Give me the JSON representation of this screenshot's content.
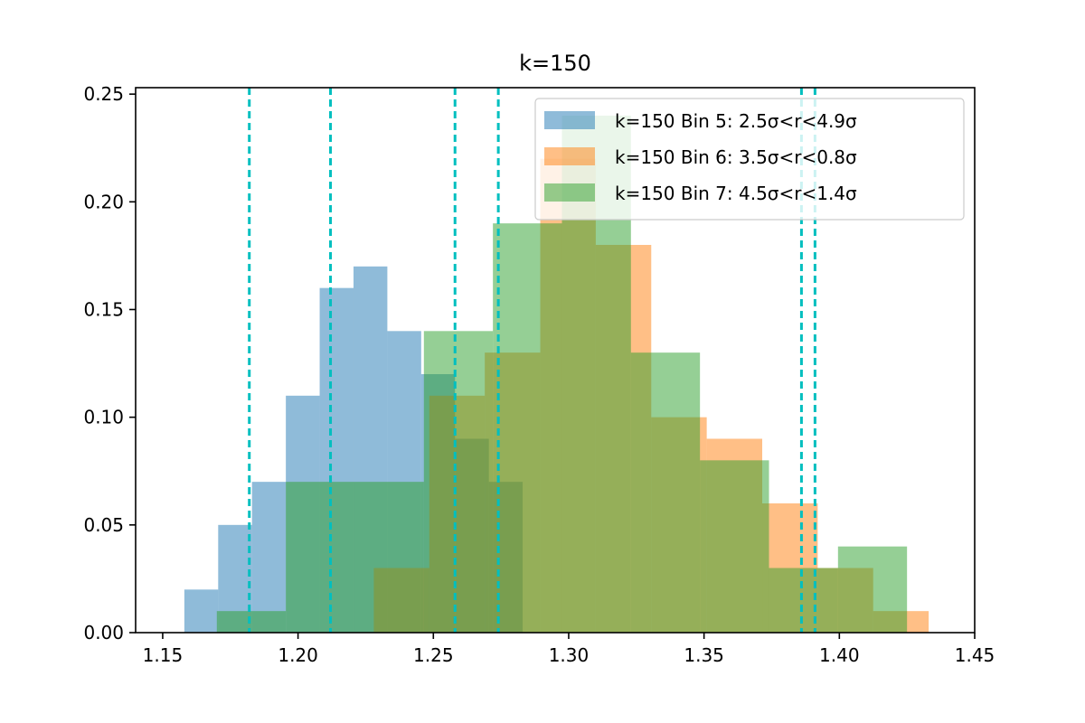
{
  "chart_data": {
    "type": "histogram",
    "title": "k=150",
    "xlabel": "",
    "ylabel": "",
    "xlim": [
      1.14,
      1.45
    ],
    "ylim": [
      0,
      0.253
    ],
    "xticks": [
      1.15,
      1.2,
      1.25,
      1.3,
      1.35,
      1.4,
      1.45
    ],
    "xtick_labels": [
      "1.15",
      "1.20",
      "1.25",
      "1.30",
      "1.35",
      "1.40",
      "1.45"
    ],
    "yticks": [
      0.0,
      0.05,
      0.1,
      0.15,
      0.2,
      0.25
    ],
    "ytick_labels": [
      "0.00",
      "0.05",
      "0.10",
      "0.15",
      "0.20",
      "0.25"
    ],
    "grid": false,
    "legend_position": "top-right",
    "series": [
      {
        "name": "k=150 Bin 5: 2.5σ<r<4.9σ",
        "color": "#1f77b4",
        "alpha": 0.5,
        "bins": [
          {
            "x0": 1.158,
            "x1": 1.1705,
            "value": 0.02
          },
          {
            "x0": 1.1705,
            "x1": 1.183,
            "value": 0.05
          },
          {
            "x0": 1.183,
            "x1": 1.1955,
            "value": 0.07
          },
          {
            "x0": 1.1955,
            "x1": 1.208,
            "value": 0.11
          },
          {
            "x0": 1.208,
            "x1": 1.2205,
            "value": 0.16
          },
          {
            "x0": 1.2205,
            "x1": 1.233,
            "value": 0.17
          },
          {
            "x0": 1.233,
            "x1": 1.2455,
            "value": 0.14
          },
          {
            "x0": 1.2455,
            "x1": 1.258,
            "value": 0.12
          },
          {
            "x0": 1.258,
            "x1": 1.2705,
            "value": 0.09
          },
          {
            "x0": 1.2705,
            "x1": 1.283,
            "value": 0.07
          }
        ]
      },
      {
        "name": "k=150 Bin 6: 3.5σ<r<0.8σ",
        "color": "#ff7f0e",
        "alpha": 0.5,
        "bins": [
          {
            "x0": 1.228,
            "x1": 1.2485,
            "value": 0.03
          },
          {
            "x0": 1.2485,
            "x1": 1.269,
            "value": 0.11
          },
          {
            "x0": 1.269,
            "x1": 1.2895,
            "value": 0.13
          },
          {
            "x0": 1.2895,
            "x1": 1.31,
            "value": 0.22
          },
          {
            "x0": 1.31,
            "x1": 1.3305,
            "value": 0.18
          },
          {
            "x0": 1.3305,
            "x1": 1.351,
            "value": 0.1
          },
          {
            "x0": 1.351,
            "x1": 1.3715,
            "value": 0.09
          },
          {
            "x0": 1.3715,
            "x1": 1.392,
            "value": 0.06
          },
          {
            "x0": 1.392,
            "x1": 1.4125,
            "value": 0.03
          },
          {
            "x0": 1.4125,
            "x1": 1.433,
            "value": 0.01
          }
        ]
      },
      {
        "name": "k=150 Bin 7: 4.5σ<r<1.4σ",
        "color": "#2ca02c",
        "alpha": 0.5,
        "bins": [
          {
            "x0": 1.17,
            "x1": 1.1955,
            "value": 0.01
          },
          {
            "x0": 1.1955,
            "x1": 1.221,
            "value": 0.07
          },
          {
            "x0": 1.221,
            "x1": 1.2465,
            "value": 0.07
          },
          {
            "x0": 1.2465,
            "x1": 1.272,
            "value": 0.14
          },
          {
            "x0": 1.272,
            "x1": 1.2975,
            "value": 0.19
          },
          {
            "x0": 1.2975,
            "x1": 1.323,
            "value": 0.24
          },
          {
            "x0": 1.323,
            "x1": 1.3485,
            "value": 0.13
          },
          {
            "x0": 1.3485,
            "x1": 1.374,
            "value": 0.08
          },
          {
            "x0": 1.374,
            "x1": 1.3995,
            "value": 0.03
          },
          {
            "x0": 1.3995,
            "x1": 1.425,
            "value": 0.04
          }
        ]
      }
    ],
    "vlines": {
      "color": "#00bfbf",
      "style": "dashed",
      "x": [
        1.182,
        1.212,
        1.258,
        1.274,
        1.386,
        1.391
      ]
    }
  }
}
